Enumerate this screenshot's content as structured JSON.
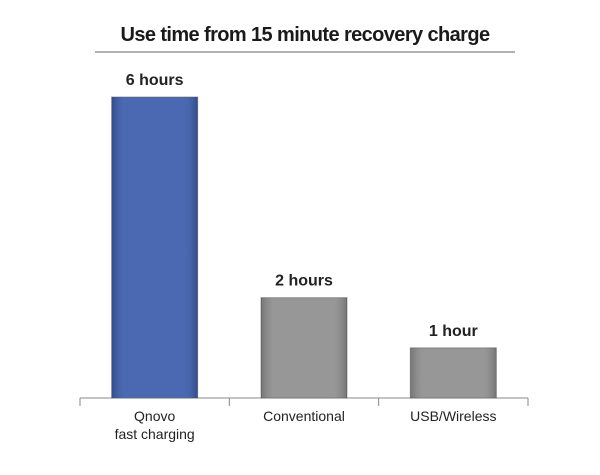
{
  "chart_data": {
    "type": "bar",
    "title": "Use time from 15 minute recovery charge",
    "categories": [
      "Qnovo\nfast charging",
      "Conventional",
      "USB/Wireless"
    ],
    "values": [
      6,
      2,
      1
    ],
    "value_labels": [
      "6 hours",
      "2 hours",
      "1 hour"
    ],
    "colors": [
      "#3a5cab",
      "#8e8e8e",
      "#8e8e8e"
    ]
  }
}
